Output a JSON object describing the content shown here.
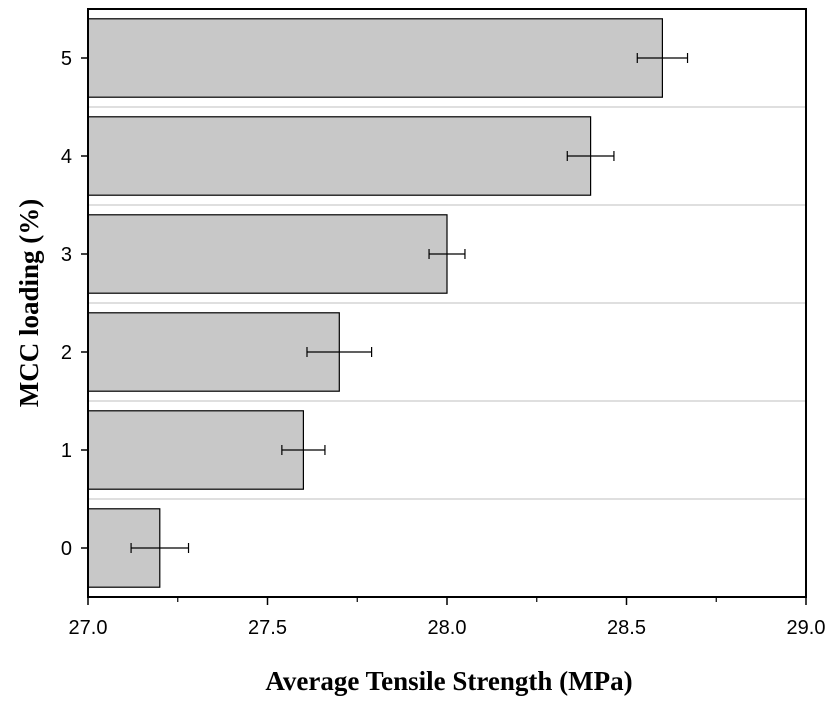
{
  "chart_data": {
    "type": "bar",
    "orientation": "horizontal",
    "xlabel": "Average Tensile Strength (MPa)",
    "ylabel": "MCC loading (%)",
    "xlim": [
      27.0,
      29.0
    ],
    "xticks": [
      "27.0",
      "27.5",
      "28.0",
      "28.5",
      "29.0"
    ],
    "categories": [
      "0",
      "1",
      "2",
      "3",
      "4",
      "5"
    ],
    "values": [
      27.2,
      27.6,
      27.7,
      28.0,
      28.4,
      28.6
    ],
    "errors": [
      0.08,
      0.06,
      0.09,
      0.05,
      0.065,
      0.07
    ],
    "bar_color": "#c8c8c8",
    "grid": "horizontal separators between categories",
    "legend": "none"
  }
}
